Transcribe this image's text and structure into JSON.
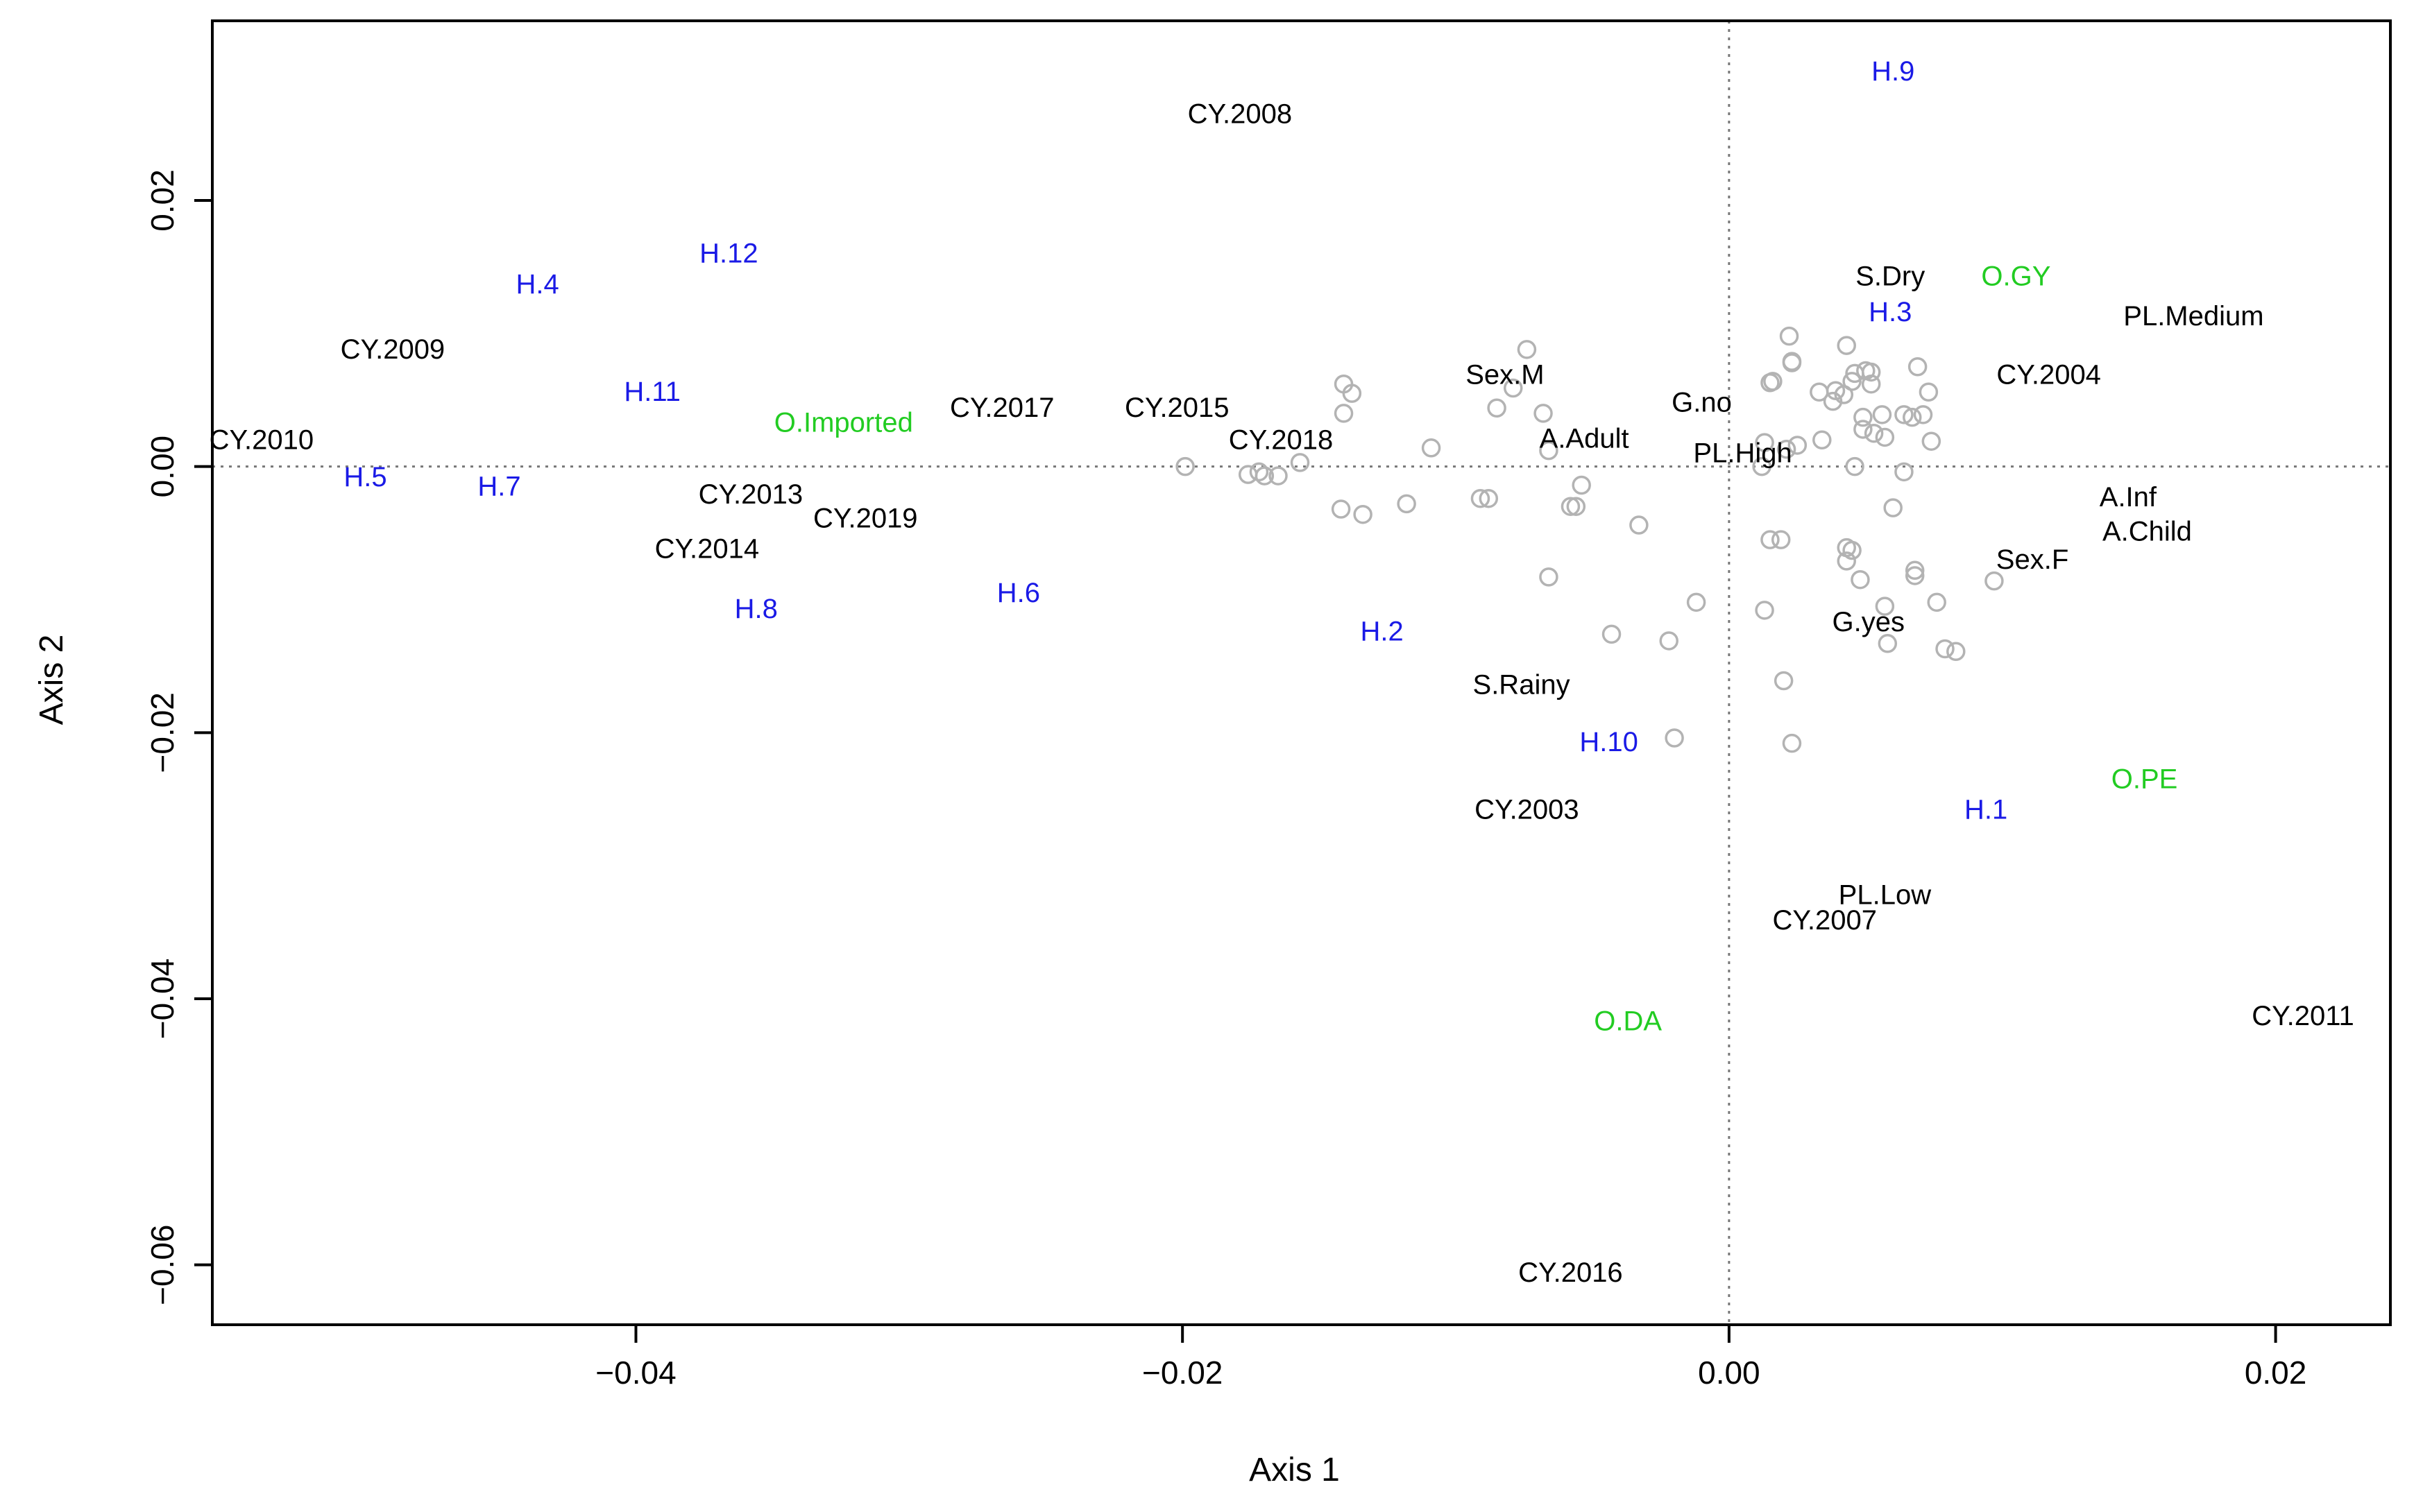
{
  "colors": {
    "category": "#000000",
    "haplotype": "#1a1ae6",
    "origin": "#22cc22",
    "points": "#b3b3b3",
    "refline": "#777777",
    "frame": "#000000"
  },
  "chart_data": {
    "type": "scatter",
    "title": "",
    "xlabel": "Axis 1",
    "ylabel": "Axis 2",
    "xlim": [
      -0.0555,
      0.0242
    ],
    "ylim": [
      -0.0645,
      0.0335
    ],
    "xticks": [
      -0.04,
      -0.02,
      0.0,
      0.02
    ],
    "xtick_labels": [
      "−0.04",
      "−0.02",
      "0.00",
      "0.02"
    ],
    "yticks": [
      -0.06,
      -0.04,
      -0.02,
      0.0,
      0.02
    ],
    "ytick_labels": [
      "−0.06",
      "−0.04",
      "−0.02",
      "0.00",
      "0.02"
    ],
    "reference_lines": {
      "x": 0.0,
      "y": 0.0,
      "style": "dotted"
    },
    "labels": [
      {
        "text": "CY.2008",
        "x": -0.0179,
        "y": 0.0265,
        "group": "category"
      },
      {
        "text": "CY.2009",
        "x": -0.0489,
        "y": 0.0088,
        "group": "category"
      },
      {
        "text": "CY.2010",
        "x": -0.0537,
        "y": 0.002,
        "group": "category"
      },
      {
        "text": "CY.2017",
        "x": -0.0266,
        "y": 0.0044,
        "group": "category"
      },
      {
        "text": "CY.2015",
        "x": -0.0202,
        "y": 0.0044,
        "group": "category"
      },
      {
        "text": "CY.2018",
        "x": -0.0164,
        "y": 0.002,
        "group": "category"
      },
      {
        "text": "CY.2013",
        "x": -0.0358,
        "y": -0.0021,
        "group": "category"
      },
      {
        "text": "CY.2019",
        "x": -0.0316,
        "y": -0.0039,
        "group": "category"
      },
      {
        "text": "CY.2014",
        "x": -0.0374,
        "y": -0.0062,
        "group": "category"
      },
      {
        "text": "CY.2004",
        "x": 0.0117,
        "y": 0.0069,
        "group": "category"
      },
      {
        "text": "CY.2003",
        "x": -0.0074,
        "y": -0.0258,
        "group": "category"
      },
      {
        "text": "CY.2007",
        "x": 0.0035,
        "y": -0.0341,
        "group": "category"
      },
      {
        "text": "CY.2011",
        "x": 0.021,
        "y": -0.0413,
        "group": "category"
      },
      {
        "text": "CY.2016",
        "x": -0.0058,
        "y": -0.0606,
        "group": "category"
      },
      {
        "text": "Sex.M",
        "x": -0.0082,
        "y": 0.0069,
        "group": "category"
      },
      {
        "text": "A.Adult",
        "x": -0.0053,
        "y": 0.0021,
        "group": "category"
      },
      {
        "text": "G.no",
        "x": -0.001,
        "y": 0.0048,
        "group": "category"
      },
      {
        "text": "PL.High",
        "x": 0.0005,
        "y": 0.001,
        "group": "category"
      },
      {
        "text": "S.Dry",
        "x": 0.0059,
        "y": 0.0143,
        "group": "category"
      },
      {
        "text": "PL.Medium",
        "x": 0.017,
        "y": 0.0113,
        "group": "category"
      },
      {
        "text": "A.Inf",
        "x": 0.0146,
        "y": -0.0023,
        "group": "category"
      },
      {
        "text": "A.Child",
        "x": 0.0153,
        "y": -0.0049,
        "group": "category"
      },
      {
        "text": "Sex.F",
        "x": 0.0111,
        "y": -0.007,
        "group": "category"
      },
      {
        "text": "G.yes",
        "x": 0.0051,
        "y": -0.0117,
        "group": "category"
      },
      {
        "text": "S.Rainy",
        "x": -0.0076,
        "y": -0.0164,
        "group": "category"
      },
      {
        "text": "PL.Low",
        "x": 0.0057,
        "y": -0.0322,
        "group": "category"
      },
      {
        "text": "H.9",
        "x": 0.006,
        "y": 0.0297,
        "group": "haplotype"
      },
      {
        "text": "H.12",
        "x": -0.0366,
        "y": 0.016,
        "group": "haplotype"
      },
      {
        "text": "H.4",
        "x": -0.0436,
        "y": 0.0137,
        "group": "haplotype"
      },
      {
        "text": "H.11",
        "x": -0.0394,
        "y": 0.0056,
        "group": "haplotype"
      },
      {
        "text": "H.3",
        "x": 0.0059,
        "y": 0.0116,
        "group": "haplotype"
      },
      {
        "text": "H.5",
        "x": -0.0499,
        "y": -0.0008,
        "group": "haplotype"
      },
      {
        "text": "H.7",
        "x": -0.045,
        "y": -0.0015,
        "group": "haplotype"
      },
      {
        "text": "H.8",
        "x": -0.0356,
        "y": -0.0107,
        "group": "haplotype"
      },
      {
        "text": "H.6",
        "x": -0.026,
        "y": -0.0095,
        "group": "haplotype"
      },
      {
        "text": "H.2",
        "x": -0.0127,
        "y": -0.0124,
        "group": "haplotype"
      },
      {
        "text": "H.10",
        "x": -0.0044,
        "y": -0.0207,
        "group": "haplotype"
      },
      {
        "text": "H.1",
        "x": 0.0094,
        "y": -0.0258,
        "group": "haplotype"
      },
      {
        "text": "O.GY",
        "x": 0.0105,
        "y": 0.0143,
        "group": "origin"
      },
      {
        "text": "O.Imported",
        "x": -0.0324,
        "y": 0.0033,
        "group": "origin"
      },
      {
        "text": "O.PE",
        "x": 0.0152,
        "y": -0.0235,
        "group": "origin"
      },
      {
        "text": "O.DA",
        "x": -0.0037,
        "y": -0.0417,
        "group": "origin"
      }
    ],
    "points": [
      [
        -0.0199,
        0.0
      ],
      [
        -0.0176,
        -0.0006
      ],
      [
        -0.0172,
        -0.0004
      ],
      [
        -0.017,
        -0.0007
      ],
      [
        -0.0165,
        -0.0007
      ],
      [
        -0.0157,
        0.0003
      ],
      [
        -0.0141,
        0.0062
      ],
      [
        -0.0138,
        0.0055
      ],
      [
        -0.0141,
        0.004
      ],
      [
        -0.0142,
        -0.0032
      ],
      [
        -0.0134,
        -0.0036
      ],
      [
        -0.0118,
        -0.0028
      ],
      [
        -0.0109,
        0.0014
      ],
      [
        -0.0091,
        -0.0024
      ],
      [
        -0.0088,
        -0.0024
      ],
      [
        -0.0085,
        0.0044
      ],
      [
        -0.0079,
        0.0059
      ],
      [
        -0.0074,
        0.0088
      ],
      [
        -0.0068,
        0.004
      ],
      [
        -0.0066,
        -0.0083
      ],
      [
        -0.0066,
        0.0012
      ],
      [
        -0.0058,
        -0.003
      ],
      [
        -0.0056,
        -0.003
      ],
      [
        -0.0054,
        -0.0014
      ],
      [
        -0.0043,
        -0.0126
      ],
      [
        -0.0033,
        -0.0044
      ],
      [
        -0.0022,
        -0.0131
      ],
      [
        -0.002,
        -0.0204
      ],
      [
        -0.0012,
        -0.0102
      ],
      [
        0.0012,
        0.0
      ],
      [
        0.0013,
        0.0018
      ],
      [
        0.0013,
        -0.0108
      ],
      [
        0.0015,
        0.0063
      ],
      [
        0.0016,
        0.0064
      ],
      [
        0.0015,
        -0.0055
      ],
      [
        0.0019,
        -0.0055
      ],
      [
        0.002,
        -0.0161
      ],
      [
        0.0021,
        0.0013
      ],
      [
        0.0022,
        0.0098
      ],
      [
        0.0023,
        0.0078
      ],
      [
        0.0023,
        0.0079
      ],
      [
        0.0023,
        -0.0208
      ],
      [
        0.0025,
        0.0016
      ],
      [
        0.0033,
        0.0056
      ],
      [
        0.0034,
        0.002
      ],
      [
        0.0038,
        0.0049
      ],
      [
        0.0039,
        0.0057
      ],
      [
        0.0042,
        0.0054
      ],
      [
        0.0043,
        0.0091
      ],
      [
        0.0045,
        0.0064
      ],
      [
        0.0046,
        0.007
      ],
      [
        0.0046,
        0.0
      ],
      [
        0.0043,
        -0.0061
      ],
      [
        0.0043,
        -0.0071
      ],
      [
        0.0045,
        -0.0063
      ],
      [
        0.0049,
        0.0037
      ],
      [
        0.0049,
        0.0028
      ],
      [
        0.005,
        0.0072
      ],
      [
        0.0052,
        0.0071
      ],
      [
        0.0052,
        0.0062
      ],
      [
        0.0053,
        0.0025
      ],
      [
        0.0056,
        0.0039
      ],
      [
        0.0057,
        0.0022
      ],
      [
        0.0048,
        -0.0085
      ],
      [
        0.0057,
        -0.0105
      ],
      [
        0.0058,
        -0.0133
      ],
      [
        0.006,
        -0.0031
      ],
      [
        0.0064,
        -0.0004
      ],
      [
        0.0064,
        0.0039
      ],
      [
        0.0067,
        0.0037
      ],
      [
        0.0068,
        -0.0078
      ],
      [
        0.0068,
        -0.0082
      ],
      [
        0.0069,
        0.0075
      ],
      [
        0.0071,
        0.0039
      ],
      [
        0.0073,
        0.0056
      ],
      [
        0.0074,
        0.0019
      ],
      [
        0.0076,
        -0.0102
      ],
      [
        0.0079,
        -0.0137
      ],
      [
        0.0083,
        -0.0139
      ],
      [
        0.0097,
        -0.0086
      ]
    ]
  }
}
